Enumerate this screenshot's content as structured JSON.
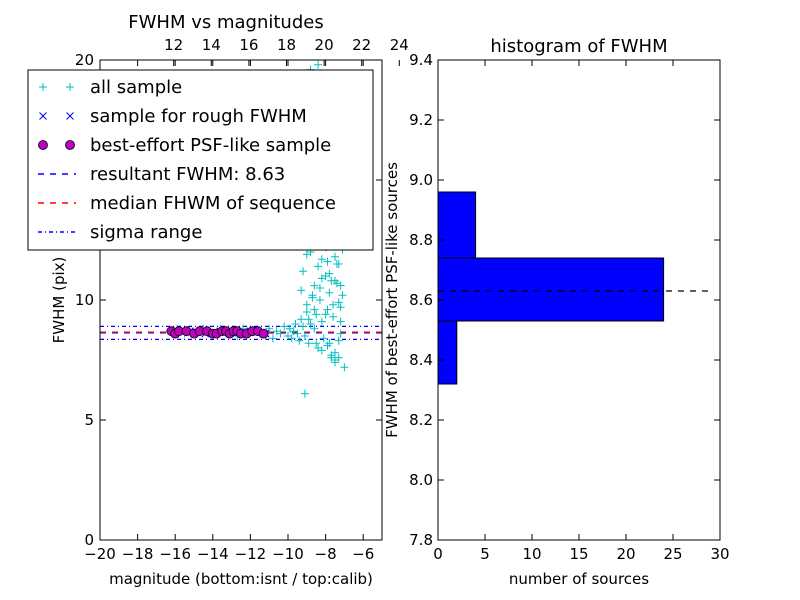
{
  "chart_data": [
    {
      "type": "scatter",
      "title": "FWHM vs magnitudes",
      "xlabel": "magnitude (bottom:isnt / top:calib)",
      "ylabel": "FWHM (pix)",
      "xlim": [
        -20,
        -5
      ],
      "ylim": [
        0,
        20
      ],
      "x_ticks": [
        -20,
        -18,
        -16,
        -14,
        -12,
        -10,
        -8,
        -6
      ],
      "x_tick_labels": [
        "−20",
        "−18",
        "−16",
        "−14",
        "−12",
        "−10",
        "−8",
        "−6"
      ],
      "y_ticks": [
        0,
        5,
        10,
        15,
        20
      ],
      "y_tick_labels": [
        "0",
        "5",
        "10",
        "15",
        "20"
      ],
      "top_axis": {
        "ticks": [
          12,
          14,
          16,
          18,
          20,
          22,
          24
        ],
        "tick_labels": [
          "12",
          "14",
          "16",
          "18",
          "20",
          "22",
          "24"
        ],
        "offset": 28.08
      },
      "legend": {
        "placement": "top-left",
        "entries": [
          {
            "label": "all sample",
            "marker": "+",
            "color": "#00bfbf"
          },
          {
            "label": "sample for rough FWHM",
            "marker": "x",
            "color": "#0000ff"
          },
          {
            "label": "best-effort PSF-like sample",
            "marker": "o",
            "color": "#bf00bf"
          },
          {
            "label": "resultant FWHM: 8.63",
            "line": "dashed",
            "color": "#0000ff"
          },
          {
            "label": "median FHWM of sequence",
            "line": "dashed",
            "color": "#ff0000"
          },
          {
            "label": "sigma range",
            "line": "dashdot",
            "color": "#0000ff"
          }
        ]
      },
      "hlines": [
        {
          "y": 8.63,
          "color": "#0000ff",
          "style": "dashed"
        },
        {
          "y": 8.66,
          "color": "#ff0000",
          "style": "dashed"
        },
        {
          "y": 8.9,
          "color": "#0000ff",
          "style": "dashdot"
        },
        {
          "y": 8.36,
          "color": "#0000ff",
          "style": "dashdot"
        }
      ],
      "series": [
        {
          "name": "all sample",
          "marker": "+",
          "color": "#00bfbf",
          "x": [
            -16.3,
            -15.9,
            -15.5,
            -15.1,
            -14.8,
            -14.5,
            -14.2,
            -13.9,
            -13.6,
            -13.3,
            -13.0,
            -12.7,
            -12.4,
            -12.1,
            -11.8,
            -11.5,
            -11.2,
            -11.0,
            -10.8,
            -10.6,
            -10.4,
            -10.2,
            -10.0,
            -9.9,
            -9.8,
            -9.7,
            -9.6,
            -9.5,
            -9.4,
            -9.3,
            -9.2,
            -9.1,
            -9.0,
            -8.9,
            -8.8,
            -8.7,
            -8.6,
            -8.5,
            -8.4,
            -8.3,
            -8.2,
            -8.1,
            -8.0,
            -7.9,
            -7.8,
            -7.7,
            -7.6,
            -7.5,
            -7.4,
            -7.3,
            -7.2,
            -7.1,
            -9.3,
            -9.2,
            -9.0,
            -8.8,
            -8.6,
            -8.5,
            -8.4,
            -8.3,
            -8.2,
            -8.1,
            -8.0,
            -7.9,
            -7.8,
            -7.7,
            -7.6,
            -7.5,
            -7.4,
            -7.3,
            -7.2,
            -7.1,
            -9.0,
            -8.8,
            -8.7,
            -8.5,
            -8.4,
            -8.3,
            -8.2,
            -8.1,
            -8.0,
            -7.9,
            -7.8,
            -7.7,
            -7.6,
            -7.5,
            -7.4,
            -7.3,
            -7.2,
            -8.9,
            -8.6,
            -8.3,
            -8.0,
            -7.8,
            -7.6,
            -7.4,
            -7.2,
            -8.5,
            -8.2,
            -7.9,
            -7.7,
            -7.5,
            -7.3,
            -8.7,
            -8.4,
            -8.1,
            -7.8,
            -7.5,
            -7.3,
            -8.0,
            -7.8,
            -7.6,
            -7.4,
            -7.7,
            -7.5,
            -7.3,
            -7.0,
            -8.8,
            -8.4,
            -9.1,
            -8.2
          ],
          "y": [
            8.7,
            8.8,
            8.6,
            8.7,
            8.6,
            8.8,
            8.7,
            8.6,
            8.8,
            8.6,
            8.7,
            8.5,
            8.8,
            8.6,
            8.7,
            8.6,
            8.5,
            8.8,
            8.4,
            8.7,
            8.6,
            8.9,
            8.5,
            8.8,
            8.4,
            8.7,
            9.0,
            8.6,
            8.3,
            9.2,
            8.9,
            8.5,
            9.5,
            8.2,
            9.0,
            10.1,
            8.8,
            9.4,
            8.0,
            10.5,
            9.1,
            8.4,
            11.0,
            9.6,
            8.2,
            10.8,
            9.3,
            7.8,
            11.5,
            9.9,
            8.6,
            10.2,
            10.4,
            11.2,
            9.8,
            12.0,
            10.6,
            13.0,
            11.4,
            12.5,
            10.9,
            13.5,
            12.2,
            11.6,
            14.0,
            12.8,
            13.2,
            11.8,
            12.6,
            13.8,
            10.6,
            12.1,
            11.9,
            13.6,
            10.2,
            14.3,
            12.4,
            13.1,
            11.7,
            14.8,
            12.9,
            13.7,
            11.1,
            14.5,
            12.3,
            10.8,
            13.4,
            11.5,
            9.7,
            9.2,
            9.6,
            10.0,
            9.4,
            10.3,
            9.8,
            10.7,
            9.1,
            8.2,
            7.9,
            8.1,
            7.6,
            7.5,
            8.3,
            15.5,
            16.2,
            14.9,
            16.8,
            15.3,
            14.1,
            17.5,
            15.8,
            16.4,
            14.7,
            7.7,
            7.4,
            7.6,
            7.2,
            19.6,
            19.8,
            6.1,
            14.4
          ]
        },
        {
          "name": "sample for rough FWHM",
          "marker": "x",
          "color": "#0000ff",
          "x": [
            -16.0,
            -15.2,
            -14.4,
            -13.6,
            -12.8,
            -12.0,
            -11.2
          ],
          "y": [
            8.6,
            8.7,
            8.6,
            8.7,
            8.6,
            8.7,
            8.6
          ]
        },
        {
          "name": "best-effort PSF-like sample",
          "marker": "o",
          "color": "#bf00bf",
          "x": [
            -16.2,
            -16.0,
            -15.8,
            -15.4,
            -15.0,
            -14.7,
            -14.3,
            -14.0,
            -13.8,
            -13.5,
            -13.3,
            -13.1,
            -12.9,
            -12.7,
            -12.5,
            -12.2,
            -11.9,
            -11.6,
            -11.3
          ],
          "y": [
            8.7,
            8.6,
            8.7,
            8.7,
            8.6,
            8.7,
            8.7,
            8.6,
            8.6,
            8.7,
            8.7,
            8.6,
            8.7,
            8.7,
            8.6,
            8.6,
            8.7,
            8.7,
            8.6
          ]
        }
      ]
    },
    {
      "type": "bar",
      "orientation": "horizontal",
      "title": "histogram of FWHM",
      "xlabel": "number of sources",
      "ylabel": "FWHM of best-effort PSF-like sources",
      "xlim": [
        0,
        30
      ],
      "ylim": [
        7.8,
        9.4
      ],
      "x_ticks": [
        0,
        5,
        10,
        15,
        20,
        25,
        30
      ],
      "x_tick_labels": [
        "0",
        "5",
        "10",
        "15",
        "20",
        "25",
        "30"
      ],
      "y_ticks": [
        7.8,
        8.0,
        8.2,
        8.4,
        8.6,
        8.8,
        9.0,
        9.2,
        9.4
      ],
      "y_tick_labels": [
        "7.8",
        "8.0",
        "8.2",
        "8.4",
        "8.6",
        "8.8",
        "9.0",
        "9.2",
        "9.4"
      ],
      "bars": [
        {
          "y0": 8.32,
          "y1": 8.53,
          "count": 2
        },
        {
          "y0": 8.53,
          "y1": 8.74,
          "count": 24
        },
        {
          "y0": 8.74,
          "y1": 8.96,
          "count": 4
        }
      ],
      "bar_color": "#0000ff",
      "hline": {
        "y": 8.63,
        "xmax": 29,
        "color": "#000000",
        "style": "dashed"
      }
    }
  ]
}
